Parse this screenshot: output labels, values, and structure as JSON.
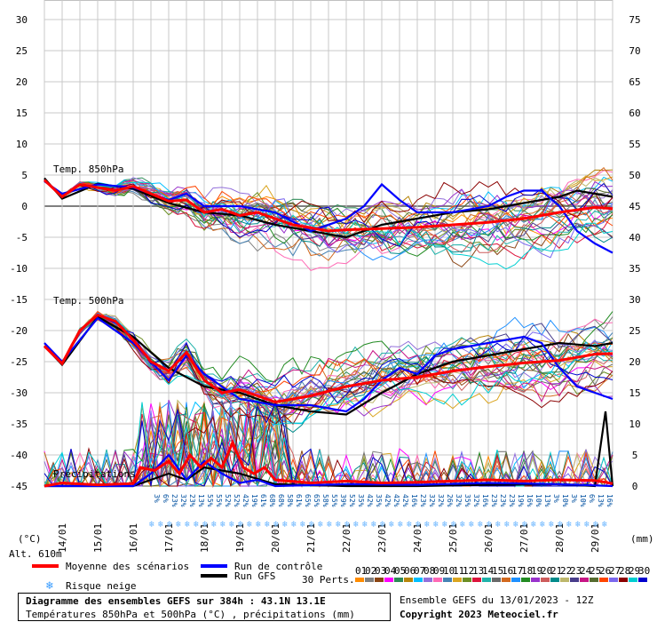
{
  "chart_data": {
    "type": "line",
    "title": "Diagramme des ensembles GEFS sur 384h : 43.1N 13.1E",
    "subtitle": "Températures 850hPa et 500hPa (°C) , précipitations (mm)",
    "run_info": "Ensemble GEFS du 13/01/2023 - 12Z",
    "copyright": "Copyright 2023 Meteociel.fr",
    "altitude": "Alt. 610m",
    "y_left_unit": "(°C)",
    "y_right_unit": "(mm)",
    "y_left_ticks": [
      30,
      25,
      20,
      15,
      10,
      5,
      0,
      -5,
      -10,
      -15,
      -20,
      -25,
      -30,
      -35,
      -40,
      -45
    ],
    "y_right_ticks": [
      75,
      70,
      65,
      60,
      55,
      50,
      45,
      40,
      35,
      30,
      25,
      20,
      15,
      10,
      5,
      0
    ],
    "ylim_left": [
      -45,
      30
    ],
    "ylim_right": [
      0,
      75
    ],
    "x_tick_labels": [
      "14/01",
      "15/01",
      "16/01",
      "17/01",
      "18/01",
      "19/01",
      "20/01",
      "21/01",
      "22/01",
      "23/01",
      "24/01",
      "25/01",
      "26/01",
      "27/01",
      "28/01",
      "29/01"
    ],
    "x_start_day": 13.5,
    "x_end_day": 29.5,
    "panel_labels": {
      "t850": "Temp. 850hPa",
      "t500": "Temp. 500hPa",
      "precip": "Précipitations"
    },
    "snow_risk": [
      "3%",
      "6%",
      "23%",
      "32%",
      "23%",
      "13%",
      "55%",
      "55%",
      "52%",
      "52%",
      "42%",
      "19%",
      "61%",
      "68%",
      "68%",
      "58%",
      "61%",
      "65%",
      "65%",
      "58%",
      "55%",
      "39%",
      "52%",
      "35%",
      "42%",
      "35%",
      "42%",
      "42%",
      "42%",
      "16%",
      "23%",
      "32%",
      "32%",
      "26%",
      "32%",
      "35%",
      "32%",
      "16%",
      "23%",
      "23%",
      "23%",
      "19%",
      "16%",
      "10%",
      "13%",
      "3%",
      "10%",
      "3%",
      "10%",
      "6%",
      "13%",
      "16%"
    ],
    "legend": {
      "mean": "Moyenne des scénarios",
      "control": "Run de contrôle",
      "gfs": "Run GFS",
      "snow": "Risque neige",
      "perts": "30 Perts."
    },
    "pert_labels": [
      "01",
      "02",
      "03",
      "04",
      "05",
      "06",
      "07",
      "08",
      "09",
      "10",
      "11",
      "12",
      "13",
      "14",
      "15",
      "16",
      "17",
      "18",
      "19",
      "20",
      "21",
      "22",
      "23",
      "24",
      "25",
      "26",
      "27",
      "28",
      "29",
      "30"
    ],
    "pert_colors": [
      "#ff8c00",
      "#808080",
      "#8b4513",
      "#ff00ff",
      "#2e8b57",
      "#b8860b",
      "#00bfff",
      "#9370db",
      "#ff69b4",
      "#4682b4",
      "#daa520",
      "#6b8e23",
      "#dc143c",
      "#20b2aa",
      "#696969",
      "#d2691e",
      "#1e90ff",
      "#228b22",
      "#9932cc",
      "#cd5c5c",
      "#008b8b",
      "#bdb76b",
      "#483d8b",
      "#c71585",
      "#556b2f",
      "#ff4500",
      "#7b68ee",
      "#8b0000",
      "#00ced1",
      "#0000cd"
    ],
    "series": [
      {
        "name": "Moyenne des scénarios",
        "color": "#ff0000",
        "t850": [
          [
            13.5,
            4.2
          ],
          [
            14,
            1.5
          ],
          [
            14.5,
            3.5
          ],
          [
            15,
            3
          ],
          [
            15.5,
            2.5
          ],
          [
            16,
            3.2
          ],
          [
            16.5,
            2
          ],
          [
            17,
            0.8
          ],
          [
            17.5,
            1
          ],
          [
            18,
            -1
          ],
          [
            18.5,
            -0.5
          ],
          [
            19,
            -1.5
          ],
          [
            19.5,
            -1
          ],
          [
            20,
            -2
          ],
          [
            20.5,
            -3
          ],
          [
            21,
            -3.5
          ],
          [
            21.5,
            -4
          ],
          [
            22,
            -3.8
          ],
          [
            23,
            -3.6
          ],
          [
            24,
            -3.4
          ],
          [
            25,
            -3
          ],
          [
            26,
            -2.6
          ],
          [
            27,
            -2
          ],
          [
            28,
            -1
          ],
          [
            29,
            -0.2
          ],
          [
            29.5,
            -0.4
          ]
        ],
        "t500": [
          [
            13.5,
            -22.5
          ],
          [
            14,
            -25.3
          ],
          [
            14.5,
            -20
          ],
          [
            15,
            -17.5
          ],
          [
            15.5,
            -18.5
          ],
          [
            16,
            -21.5
          ],
          [
            16.5,
            -25
          ],
          [
            17,
            -26.5
          ],
          [
            17.5,
            -23.5
          ],
          [
            18,
            -28
          ],
          [
            18.5,
            -30
          ],
          [
            19,
            -29.5
          ],
          [
            19.5,
            -30.5
          ],
          [
            20,
            -31.5
          ],
          [
            21,
            -30.5
          ],
          [
            22,
            -29
          ],
          [
            23,
            -28
          ],
          [
            24,
            -27.5
          ],
          [
            25,
            -26.5
          ],
          [
            26,
            -25.8
          ],
          [
            27,
            -25.2
          ],
          [
            28,
            -24.8
          ],
          [
            29,
            -23.8
          ],
          [
            29.5,
            -23.7
          ]
        ],
        "precip": [
          [
            13.5,
            0
          ],
          [
            14,
            0.5
          ],
          [
            15,
            0.2
          ],
          [
            16,
            0.4
          ],
          [
            16.2,
            3
          ],
          [
            16.6,
            2.5
          ],
          [
            17,
            4
          ],
          [
            17.3,
            2
          ],
          [
            17.6,
            5
          ],
          [
            17.9,
            3
          ],
          [
            18.2,
            4.5
          ],
          [
            18.5,
            3
          ],
          [
            18.8,
            7
          ],
          [
            19.1,
            3
          ],
          [
            19.4,
            2
          ],
          [
            19.7,
            3
          ],
          [
            20,
            1
          ],
          [
            21,
            0.5
          ],
          [
            22,
            0.8
          ],
          [
            23,
            0.5
          ],
          [
            24,
            0.6
          ],
          [
            25,
            0.8
          ],
          [
            26,
            1
          ],
          [
            27,
            0.8
          ],
          [
            28,
            1
          ],
          [
            29,
            0.9
          ],
          [
            29.5,
            0.4
          ]
        ]
      },
      {
        "name": "Run de contrôle",
        "color": "#0000ff",
        "t850": [
          [
            13.5,
            4
          ],
          [
            14,
            2
          ],
          [
            15,
            3.5
          ],
          [
            16,
            3
          ],
          [
            17,
            1
          ],
          [
            17.5,
            2
          ],
          [
            18,
            0
          ],
          [
            19,
            0
          ],
          [
            20,
            -1
          ],
          [
            21,
            -4
          ],
          [
            22,
            -2
          ],
          [
            22.5,
            0
          ],
          [
            23,
            3.5
          ],
          [
            23.5,
            1
          ],
          [
            24,
            -1
          ],
          [
            25,
            -1
          ],
          [
            26,
            0
          ],
          [
            26.5,
            1.5
          ],
          [
            27,
            2.5
          ],
          [
            27.5,
            2.5
          ],
          [
            28,
            0
          ],
          [
            28.5,
            -4
          ],
          [
            29,
            -6
          ],
          [
            29.5,
            -7.5
          ]
        ],
        "t500": [
          [
            13.5,
            -22
          ],
          [
            14,
            -25
          ],
          [
            15,
            -18
          ],
          [
            16,
            -22
          ],
          [
            17,
            -28
          ],
          [
            17.5,
            -24
          ],
          [
            18,
            -27
          ],
          [
            19,
            -31
          ],
          [
            20,
            -32
          ],
          [
            21,
            -32
          ],
          [
            22,
            -33
          ],
          [
            22.5,
            -31
          ],
          [
            23,
            -28
          ],
          [
            23.5,
            -26
          ],
          [
            24,
            -27
          ],
          [
            24.5,
            -24
          ],
          [
            25,
            -23
          ],
          [
            26,
            -22
          ],
          [
            27,
            -21
          ],
          [
            27.5,
            -22
          ],
          [
            28,
            -26
          ],
          [
            28.5,
            -29
          ],
          [
            29,
            -30
          ],
          [
            29.5,
            -31
          ]
        ],
        "precip": [
          [
            13.5,
            0
          ],
          [
            16,
            0
          ],
          [
            16.5,
            2
          ],
          [
            17,
            5
          ],
          [
            17.5,
            1
          ],
          [
            18,
            4
          ],
          [
            18.5,
            2
          ],
          [
            19,
            0.5
          ],
          [
            19.5,
            1
          ],
          [
            20,
            0
          ],
          [
            22,
            0.3
          ],
          [
            24,
            0.2
          ],
          [
            26,
            0.5
          ],
          [
            28,
            0.3
          ],
          [
            29.5,
            0
          ]
        ]
      },
      {
        "name": "Run GFS",
        "color": "#000000",
        "t850": [
          [
            13.5,
            4.5
          ],
          [
            14,
            1.2
          ],
          [
            15,
            3.6
          ],
          [
            16,
            2.8
          ],
          [
            17,
            0.5
          ],
          [
            18,
            -1
          ],
          [
            19,
            -1.5
          ],
          [
            20,
            -3
          ],
          [
            21,
            -4
          ],
          [
            22,
            -5
          ],
          [
            23,
            -3
          ],
          [
            24,
            -2
          ],
          [
            25,
            -1
          ],
          [
            26,
            -0.5
          ],
          [
            27,
            0.5
          ],
          [
            28,
            1.5
          ],
          [
            28.5,
            2.5
          ],
          [
            29,
            2
          ],
          [
            29.5,
            1.5
          ]
        ],
        "t500": [
          [
            13.5,
            -22.5
          ],
          [
            14,
            -25.5
          ],
          [
            15,
            -17.8
          ],
          [
            16,
            -21
          ],
          [
            17,
            -26
          ],
          [
            18,
            -29
          ],
          [
            19,
            -30
          ],
          [
            20,
            -32
          ],
          [
            21,
            -33
          ],
          [
            22,
            -33.5
          ],
          [
            23,
            -30
          ],
          [
            24,
            -27
          ],
          [
            25,
            -25
          ],
          [
            26,
            -24
          ],
          [
            27,
            -23
          ],
          [
            28,
            -22
          ],
          [
            29,
            -22.5
          ],
          [
            29.5,
            -22
          ]
        ],
        "precip": [
          [
            13.5,
            0
          ],
          [
            16,
            0
          ],
          [
            17,
            2
          ],
          [
            17.5,
            1
          ],
          [
            18,
            3
          ],
          [
            19,
            2
          ],
          [
            20,
            0.3
          ],
          [
            22,
            0
          ],
          [
            24,
            0
          ],
          [
            26,
            0.2
          ],
          [
            28,
            0.3
          ],
          [
            29,
            0
          ],
          [
            29.3,
            12
          ],
          [
            29.5,
            0
          ]
        ]
      }
    ]
  }
}
